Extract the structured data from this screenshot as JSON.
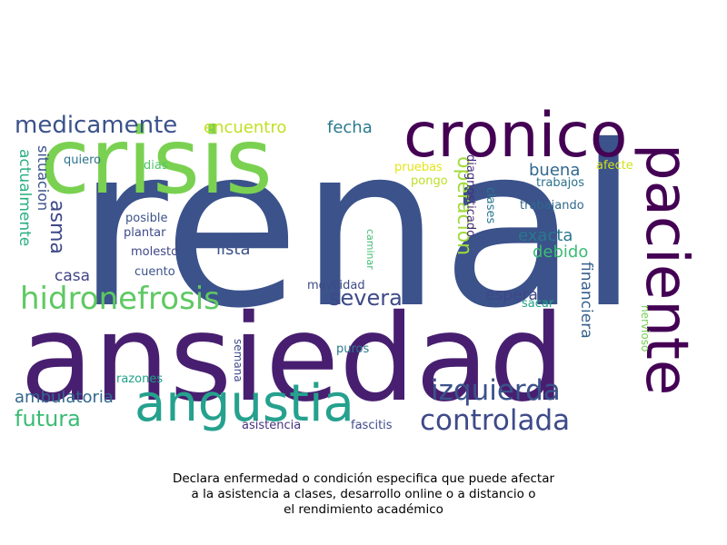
{
  "palette": {
    "dark_purple": "#440154",
    "indigo": "#472d7b",
    "navy": "#3b528b",
    "slate": "#2c728e",
    "teal": "#21918c",
    "sea": "#28ae80",
    "green": "#5ec962",
    "lime": "#addc30",
    "yellow": "#dde318"
  },
  "words": [
    {
      "text": "renal",
      "color": "#3b528b",
      "vertical": false
    },
    {
      "text": "ansiedad",
      "color": "#481f70",
      "vertical": false
    },
    {
      "text": "crisis",
      "color": "#7ad151",
      "vertical": false
    },
    {
      "text": "cronico",
      "color": "#440154",
      "vertical": false
    },
    {
      "text": "paciente",
      "color": "#440154",
      "vertical": true
    },
    {
      "text": "angustia",
      "color": "#25a18e",
      "vertical": false
    },
    {
      "text": "hidronefrosis",
      "color": "#5ec962",
      "vertical": false
    },
    {
      "text": "izquierda",
      "color": "#3b528b",
      "vertical": false
    },
    {
      "text": "controlada",
      "color": "#3e4a89",
      "vertical": false
    },
    {
      "text": "medicamente",
      "color": "#3b528b",
      "vertical": false
    },
    {
      "text": "severa",
      "color": "#3e4a89",
      "vertical": false
    },
    {
      "text": "futura",
      "color": "#3cbb75",
      "vertical": false
    },
    {
      "text": "ambulatoria",
      "color": "#31688e",
      "vertical": false
    },
    {
      "text": "operacion",
      "color": "#a0da39",
      "vertical": true
    },
    {
      "text": "asma",
      "color": "#3e4a89",
      "vertical": true
    },
    {
      "text": "encuentro",
      "color": "#c2df23",
      "vertical": false
    },
    {
      "text": "fecha",
      "color": "#2a788e",
      "vertical": false
    },
    {
      "text": "buena",
      "color": "#31688e",
      "vertical": false
    },
    {
      "text": "exacta",
      "color": "#2a788e",
      "vertical": false
    },
    {
      "text": "debido",
      "color": "#3cbb75",
      "vertical": false
    },
    {
      "text": "lista",
      "color": "#3b528b",
      "vertical": false
    },
    {
      "text": "espera",
      "color": "#404688",
      "vertical": false
    },
    {
      "text": "casa",
      "color": "#414487",
      "vertical": false
    },
    {
      "text": "financiera",
      "color": "#355f8d",
      "vertical": true
    },
    {
      "text": "actualmente",
      "color": "#29af7f",
      "vertical": true
    },
    {
      "text": "situacion",
      "color": "#3b528b",
      "vertical": true
    },
    {
      "text": "quiero",
      "color": "#2c728e",
      "vertical": false
    },
    {
      "text": "dias",
      "color": "#52c569",
      "vertical": false
    },
    {
      "text": "pruebas",
      "color": "#e5e419",
      "vertical": false
    },
    {
      "text": "pongo",
      "color": "#bddf26",
      "vertical": false
    },
    {
      "text": "afecte",
      "color": "#d0e11c",
      "vertical": false
    },
    {
      "text": "trabajos",
      "color": "#2c728e",
      "vertical": false
    },
    {
      "text": "diagnosticado",
      "color": "#472d7b",
      "vertical": true
    },
    {
      "text": "clases",
      "color": "#2a788e",
      "vertical": true
    },
    {
      "text": "trabajando",
      "color": "#31688e",
      "vertical": false
    },
    {
      "text": "posible",
      "color": "#3b528b",
      "vertical": false
    },
    {
      "text": "plantar",
      "color": "#3e4a89",
      "vertical": false
    },
    {
      "text": "molesto",
      "color": "#404688",
      "vertical": false
    },
    {
      "text": "cuento",
      "color": "#3b528b",
      "vertical": false
    },
    {
      "text": "caminar",
      "color": "#40bd72",
      "vertical": true
    },
    {
      "text": "movilidad",
      "color": "#3e4a89",
      "vertical": false
    },
    {
      "text": "sacar",
      "color": "#20a386",
      "vertical": false
    },
    {
      "text": "nervioso",
      "color": "#75d054",
      "vertical": true
    },
    {
      "text": "puros",
      "color": "#2a788e",
      "vertical": false
    },
    {
      "text": "razones",
      "color": "#1fa088",
      "vertical": false
    },
    {
      "text": "semana",
      "color": "#3e4a89",
      "vertical": true
    },
    {
      "text": "asistencia",
      "color": "#46337e",
      "vertical": false
    },
    {
      "text": "fascitis",
      "color": "#3e4a89",
      "vertical": false
    }
  ],
  "caption": {
    "line1": "Declara enfermedad o condición especifica que puede afectar",
    "line2": "a la asistencia a clases, desarrollo online o a distancio o",
    "line3": "el rendimiento académico"
  }
}
